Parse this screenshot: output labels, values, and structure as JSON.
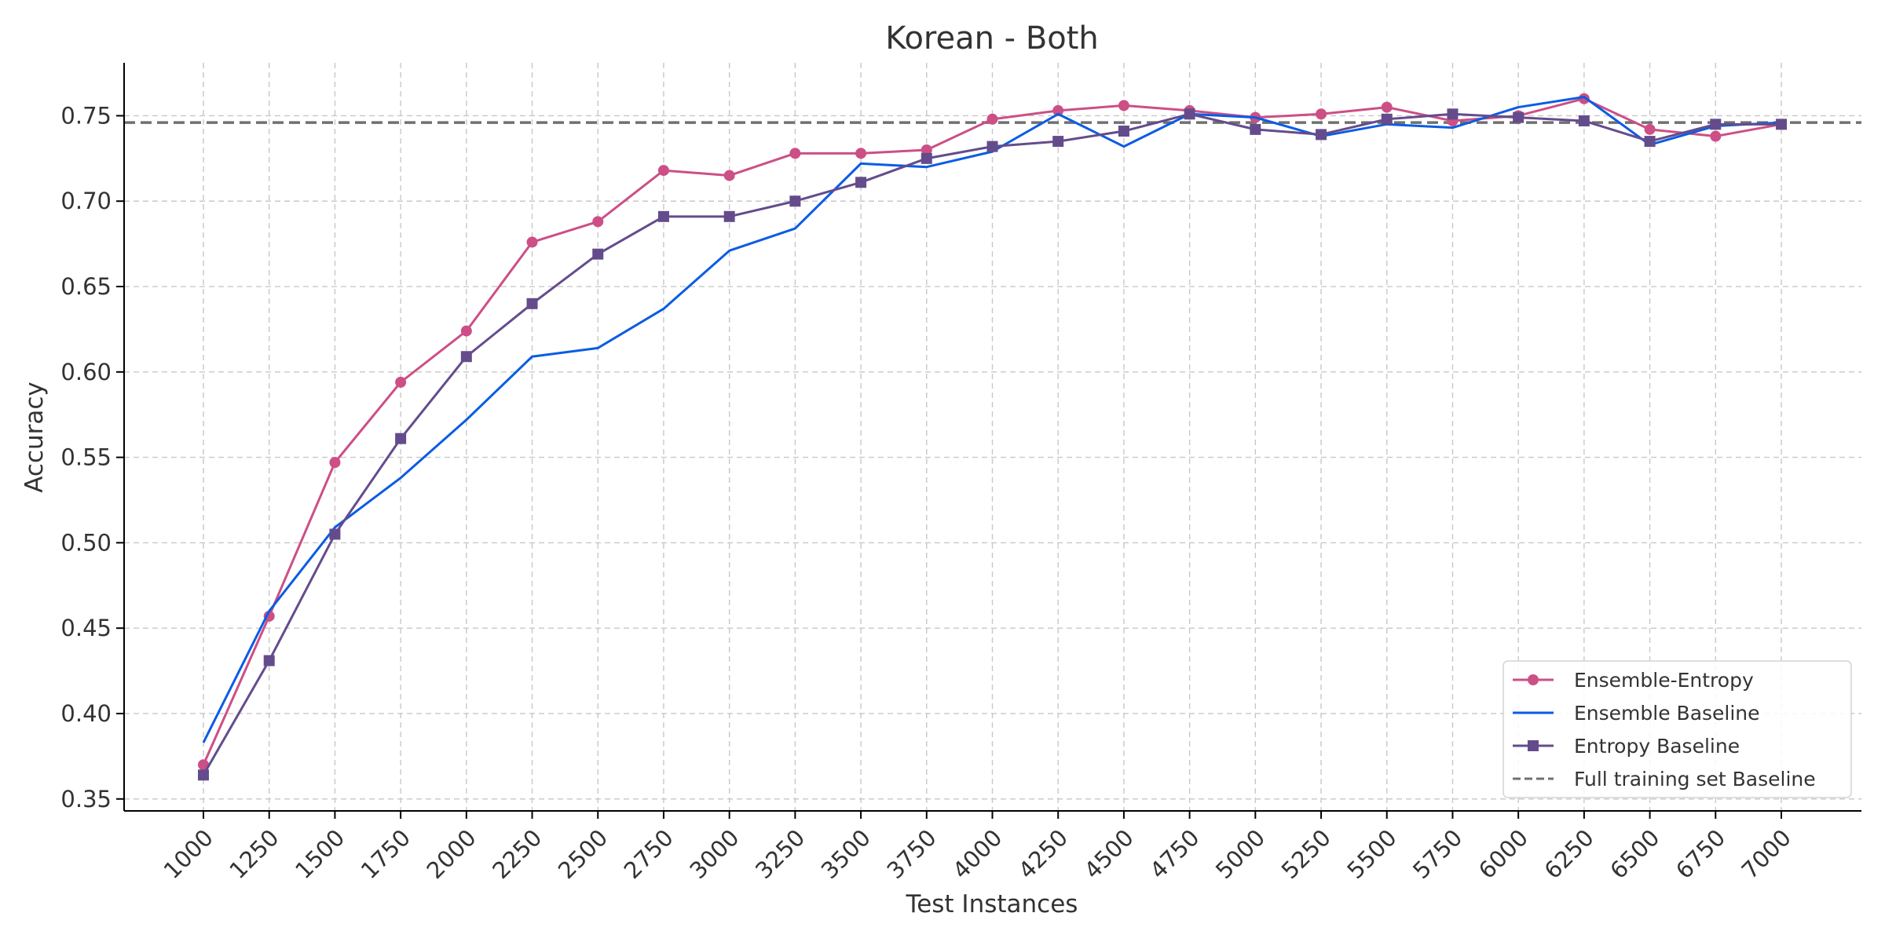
{
  "chart_data": {
    "type": "line",
    "title": "Korean - Both",
    "xlabel": "Test Instances",
    "ylabel": "Accuracy",
    "ylim": [
      0.343,
      0.781
    ],
    "y_ticks": [
      "0.35",
      "0.40",
      "0.45",
      "0.50",
      "0.55",
      "0.60",
      "0.65",
      "0.70",
      "0.75"
    ],
    "grid": true,
    "legend_position": "bottom-right",
    "categories": [
      "1000",
      "1250",
      "1500",
      "1750",
      "2000",
      "2250",
      "2500",
      "2750",
      "3000",
      "3250",
      "3500",
      "3750",
      "4000",
      "4250",
      "4500",
      "4750",
      "5000",
      "5250",
      "5500",
      "5750",
      "6000",
      "6250",
      "6500",
      "6750",
      "7000"
    ],
    "series": [
      {
        "name": "Ensemble-Entropy",
        "color": "#cc4f86",
        "marker": "circle",
        "values": [
          0.37,
          0.457,
          0.547,
          0.594,
          0.624,
          0.676,
          0.688,
          0.718,
          0.715,
          0.728,
          0.728,
          0.73,
          0.748,
          0.753,
          0.756,
          0.753,
          0.749,
          0.751,
          0.755,
          0.747,
          0.75,
          0.76,
          0.742,
          0.738,
          0.745
        ]
      },
      {
        "name": "Ensemble Baseline",
        "color": "#0b5ce3",
        "marker": "none",
        "values": [
          0.383,
          0.46,
          0.509,
          0.538,
          0.572,
          0.609,
          0.614,
          0.637,
          0.671,
          0.684,
          0.722,
          0.72,
          0.729,
          0.751,
          0.732,
          0.751,
          0.749,
          0.738,
          0.745,
          0.743,
          0.755,
          0.761,
          0.733,
          0.744,
          0.746
        ]
      },
      {
        "name": "Entropy Baseline",
        "color": "#644c8c",
        "marker": "square",
        "values": [
          0.364,
          0.431,
          0.505,
          0.561,
          0.609,
          0.64,
          0.669,
          0.691,
          0.691,
          0.7,
          0.711,
          0.725,
          0.732,
          0.735,
          0.741,
          0.751,
          0.742,
          0.739,
          0.748,
          0.751,
          0.749,
          0.747,
          0.735,
          0.745,
          0.745
        ]
      }
    ],
    "reference_line": {
      "name": "Full training set Baseline",
      "color": "#707070",
      "value": 0.746
    }
  }
}
